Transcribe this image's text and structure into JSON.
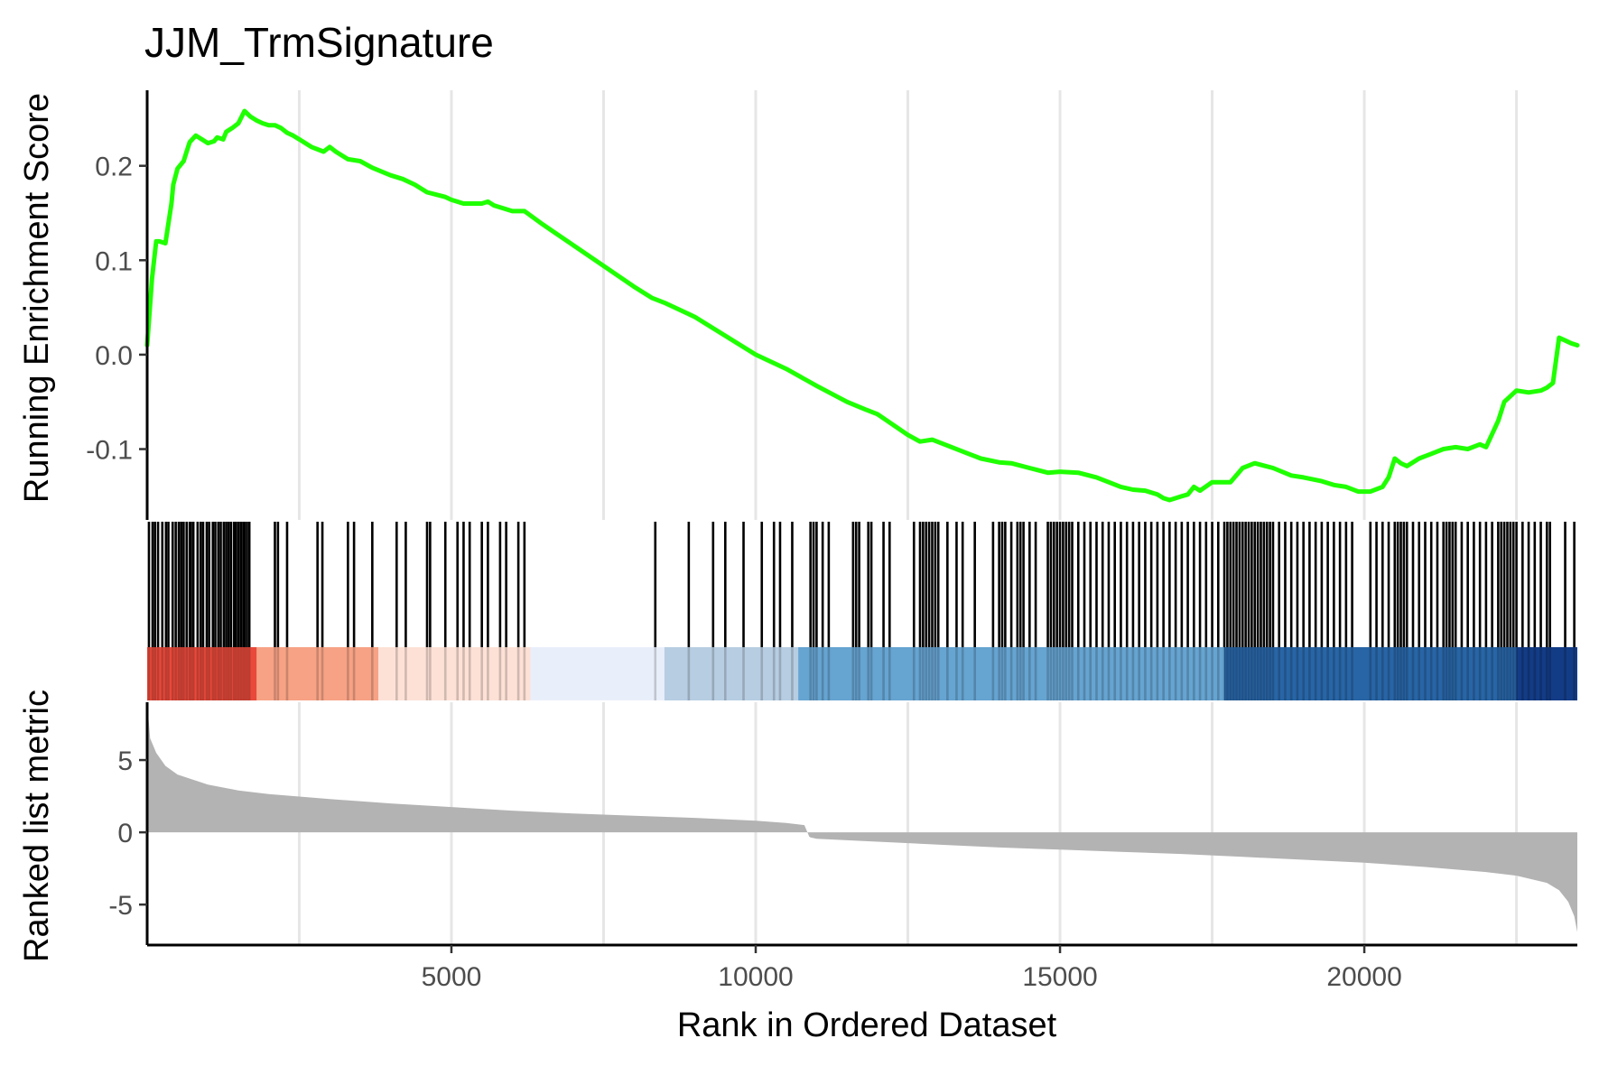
{
  "chart_data": {
    "type": "line",
    "title": "JJM_TrmSignature",
    "xlabel": "Rank in Ordered Dataset",
    "xlim": [
      1,
      23500
    ],
    "x_ticks": [
      5000,
      10000,
      15000,
      20000
    ],
    "x_tick_labels": [
      "5000",
      "10000",
      "15000",
      "20000"
    ],
    "grid_x": [
      2500,
      5000,
      7500,
      10000,
      12500,
      15000,
      17500,
      20000,
      22500
    ],
    "colors": {
      "es_line": "#1fff00",
      "hits": "#000000",
      "metric_fill": "#b3b3b3",
      "grid": "#e6e6e6"
    },
    "panels": {
      "running_es": {
        "ylabel": "Running Enrichment Score",
        "ylim": [
          -0.175,
          0.28
        ],
        "y_ticks": [
          0.2,
          0.1,
          0.0,
          -0.1
        ],
        "y_tick_labels": [
          "0.2",
          "0.1",
          "0.0",
          "-0.1"
        ],
        "series": [
          {
            "x": [
              1,
              80,
              150,
              200,
              300,
              400,
              430,
              500,
              600,
              650,
              700,
              800,
              900,
              1000,
              1100,
              1150,
              1250,
              1300,
              1400,
              1500,
              1600,
              1700,
              1800,
              1900,
              2000,
              2100,
              2200,
              2300,
              2400,
              2500,
              2700,
              2900,
              3000,
              3100,
              3300,
              3500,
              3700,
              4000,
              4200,
              4400,
              4600,
              4900,
              5000,
              5200,
              5500,
              5600,
              5700,
              6000,
              6200,
              6500,
              7000,
              7500,
              8000,
              8300,
              8500,
              9000,
              9500,
              10000,
              10500,
              11000,
              11500,
              11800,
              12000,
              12500,
              12700,
              12900,
              13100,
              13500,
              13700,
              14000,
              14200,
              14500,
              14800,
              15000,
              15300,
              15600,
              15800,
              16000,
              16200,
              16400,
              16600,
              16700,
              16800,
              17000,
              17100,
              17200,
              17300,
              17500,
              17800,
              18000,
              18200,
              18500,
              18800,
              19000,
              19300,
              19500,
              19700,
              19900,
              20100,
              20300,
              20400,
              20500,
              20600,
              20700,
              20900,
              21100,
              21300,
              21500,
              21700,
              21900,
              22000,
              22200,
              22300,
              22500,
              22700,
              22900,
              23000,
              23100,
              23200,
              23300,
              23400,
              23500
            ],
            "values": [
              0.01,
              0.08,
              0.12,
              0.12,
              0.118,
              0.16,
              0.18,
              0.197,
              0.205,
              0.215,
              0.225,
              0.232,
              0.228,
              0.224,
              0.226,
              0.23,
              0.228,
              0.236,
              0.24,
              0.245,
              0.258,
              0.252,
              0.248,
              0.245,
              0.243,
              0.243,
              0.24,
              0.235,
              0.232,
              0.228,
              0.22,
              0.215,
              0.22,
              0.215,
              0.207,
              0.205,
              0.198,
              0.19,
              0.186,
              0.18,
              0.172,
              0.167,
              0.164,
              0.16,
              0.16,
              0.162,
              0.158,
              0.152,
              0.152,
              0.138,
              0.116,
              0.094,
              0.072,
              0.06,
              0.055,
              0.04,
              0.02,
              0.0,
              -0.015,
              -0.033,
              -0.05,
              -0.058,
              -0.063,
              -0.085,
              -0.092,
              -0.09,
              -0.095,
              -0.105,
              -0.11,
              -0.114,
              -0.115,
              -0.12,
              -0.125,
              -0.124,
              -0.125,
              -0.13,
              -0.135,
              -0.14,
              -0.143,
              -0.144,
              -0.148,
              -0.152,
              -0.154,
              -0.15,
              -0.148,
              -0.14,
              -0.144,
              -0.135,
              -0.135,
              -0.12,
              -0.115,
              -0.12,
              -0.128,
              -0.13,
              -0.134,
              -0.138,
              -0.14,
              -0.145,
              -0.145,
              -0.14,
              -0.13,
              -0.11,
              -0.115,
              -0.118,
              -0.11,
              -0.105,
              -0.1,
              -0.098,
              -0.1,
              -0.095,
              -0.098,
              -0.07,
              -0.05,
              -0.038,
              -0.04,
              -0.038,
              -0.035,
              -0.03,
              0.018,
              0.015,
              0.012,
              0.01
            ]
          }
        ]
      },
      "hits": {
        "positions": [
          30,
          90,
          130,
          180,
          250,
          310,
          350,
          420,
          470,
          520,
          560,
          600,
          650,
          700,
          720,
          760,
          830,
          880,
          920,
          980,
          1020,
          1080,
          1120,
          1170,
          1210,
          1260,
          1300,
          1340,
          1380,
          1430,
          1460,
          1500,
          1540,
          1580,
          1600,
          1640,
          1680,
          2100,
          2150,
          2300,
          2800,
          2880,
          3300,
          3400,
          3700,
          4100,
          4250,
          4600,
          4650,
          4900,
          5100,
          5200,
          5300,
          5500,
          5600,
          5800,
          5900,
          6100,
          6200,
          8350,
          8900,
          9300,
          9500,
          9800,
          10100,
          10300,
          10400,
          10600,
          10900,
          10950,
          11000,
          11100,
          11200,
          11600,
          11650,
          11700,
          11850,
          11900,
          12100,
          12200,
          12600,
          12700,
          12750,
          12800,
          12850,
          12900,
          12950,
          13000,
          13150,
          13300,
          13400,
          13600,
          13900,
          14000,
          14050,
          14100,
          14200,
          14300,
          14350,
          14400,
          14500,
          14600,
          14800,
          14850,
          14900,
          14950,
          15000,
          15050,
          15100,
          15150,
          15200,
          15300,
          15400,
          15500,
          15600,
          15700,
          15800,
          15900,
          16000,
          16100,
          16200,
          16300,
          16400,
          16500,
          16600,
          16700,
          16800,
          16900,
          17000,
          17100,
          17200,
          17300,
          17400,
          17500,
          17600,
          17700,
          17750,
          17800,
          17850,
          17900,
          17950,
          18000,
          18050,
          18100,
          18150,
          18200,
          18250,
          18300,
          18350,
          18400,
          18450,
          18500,
          18600,
          18700,
          18800,
          18900,
          19000,
          19100,
          19200,
          19300,
          19400,
          19500,
          19600,
          19700,
          19800,
          20100,
          20200,
          20300,
          20400,
          20500,
          20550,
          20600,
          20650,
          20700,
          20800,
          20900,
          21000,
          21100,
          21200,
          21300,
          21350,
          21400,
          21450,
          21500,
          21600,
          21700,
          21800,
          21900,
          22000,
          22100,
          22200,
          22250,
          22300,
          22350,
          22400,
          22450,
          22500,
          22600,
          22700,
          22800,
          22900,
          23000,
          23050,
          23300,
          23450
        ]
      },
      "rank_color_band": {
        "segments": [
          {
            "from": 1,
            "to": 1800,
            "color": "#e8493a"
          },
          {
            "from": 1800,
            "to": 3800,
            "color": "#f6a285"
          },
          {
            "from": 3800,
            "to": 6300,
            "color": "#fde1d5"
          },
          {
            "from": 6300,
            "to": 8500,
            "color": "#e9effa"
          },
          {
            "from": 8500,
            "to": 10700,
            "color": "#b7cde2"
          },
          {
            "from": 10700,
            "to": 17700,
            "color": "#66a4d1"
          },
          {
            "from": 17700,
            "to": 22500,
            "color": "#2865a6"
          },
          {
            "from": 22500,
            "to": 23500,
            "color": "#143c86"
          }
        ]
      },
      "ranked_metric": {
        "ylabel": "Ranked list metric",
        "ylim": [
          -7.8,
          9.0
        ],
        "y_ticks": [
          5,
          0,
          -5
        ],
        "y_tick_labels": [
          "5",
          "0",
          "-5"
        ],
        "x": [
          1,
          50,
          150,
          300,
          500,
          1000,
          1500,
          2000,
          3000,
          4000,
          5000,
          6000,
          7000,
          8000,
          9000,
          10000,
          10500,
          10800,
          10880,
          10900,
          11000,
          12000,
          13000,
          14000,
          15000,
          16000,
          17000,
          18000,
          19000,
          20000,
          21000,
          22000,
          22500,
          23000,
          23200,
          23350,
          23450,
          23500
        ],
        "values": [
          9.0,
          6.5,
          5.5,
          4.6,
          4.0,
          3.3,
          2.9,
          2.65,
          2.3,
          2.0,
          1.75,
          1.5,
          1.3,
          1.15,
          1.0,
          0.8,
          0.65,
          0.5,
          -0.3,
          -0.35,
          -0.45,
          -0.65,
          -0.85,
          -1.05,
          -1.2,
          -1.35,
          -1.5,
          -1.7,
          -1.9,
          -2.1,
          -2.4,
          -2.75,
          -3.0,
          -3.5,
          -4.0,
          -4.8,
          -5.8,
          -6.9
        ]
      }
    }
  }
}
